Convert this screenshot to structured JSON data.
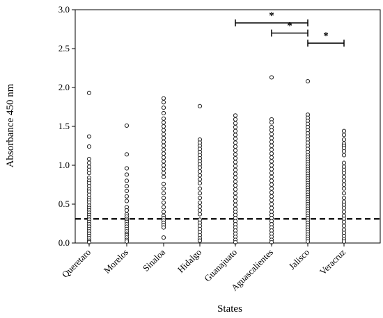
{
  "chart_data": {
    "type": "scatter",
    "title": "",
    "xlabel": "States",
    "ylabel": "Absorbance 450 nm",
    "ylim": [
      0,
      3.0
    ],
    "yticks": [
      "0.0",
      "0.5",
      "1.0",
      "1.5",
      "2.0",
      "2.5",
      "3.0"
    ],
    "categories": [
      "Queretaro",
      "Morelos",
      "Sinaloa",
      "Hidalgo",
      "Guanajuato",
      "Aguascalientes",
      "Jalisco",
      "Veracruz"
    ],
    "grid": false,
    "cutoff_line": 0.31,
    "series": [
      {
        "category": "Queretaro",
        "values": [
          1.93,
          1.37,
          1.24,
          1.08,
          1.03,
          0.98,
          0.94,
          0.9,
          0.84,
          0.8,
          0.77,
          0.73,
          0.69,
          0.66,
          0.62,
          0.58,
          0.55,
          0.52,
          0.48,
          0.45,
          0.42,
          0.39,
          0.36,
          0.33,
          0.3,
          0.27,
          0.24,
          0.21,
          0.18,
          0.15,
          0.12,
          0.09,
          0.06,
          0.03,
          0.01
        ]
      },
      {
        "category": "Morelos",
        "values": [
          1.51,
          1.14,
          0.96,
          0.88,
          0.8,
          0.73,
          0.67,
          0.6,
          0.54,
          0.46,
          0.42,
          0.37,
          0.34,
          0.31,
          0.29,
          0.27,
          0.24,
          0.21,
          0.18,
          0.15,
          0.12,
          0.1,
          0.07,
          0.04,
          0.02
        ]
      },
      {
        "category": "Sinaloa",
        "values": [
          1.86,
          1.81,
          1.74,
          1.67,
          1.6,
          1.55,
          1.5,
          1.45,
          1.4,
          1.35,
          1.3,
          1.25,
          1.2,
          1.15,
          1.1,
          1.05,
          1.0,
          0.95,
          0.9,
          0.85,
          0.76,
          0.7,
          0.64,
          0.58,
          0.52,
          0.46,
          0.4,
          0.35,
          0.32,
          0.29,
          0.26,
          0.23,
          0.2,
          0.07
        ]
      },
      {
        "category": "Hidalgo",
        "values": [
          1.76,
          1.33,
          1.29,
          1.25,
          1.21,
          1.17,
          1.13,
          1.09,
          1.05,
          1.01,
          0.97,
          0.92,
          0.87,
          0.82,
          0.77,
          0.7,
          0.64,
          0.58,
          0.52,
          0.47,
          0.42,
          0.37,
          0.3,
          0.26,
          0.22,
          0.18,
          0.14,
          0.1,
          0.06,
          0.03
        ]
      },
      {
        "category": "Guanajuato",
        "values": [
          1.64,
          1.59,
          1.54,
          1.49,
          1.44,
          1.39,
          1.34,
          1.29,
          1.24,
          1.19,
          1.14,
          1.09,
          1.04,
          0.99,
          0.94,
          0.89,
          0.84,
          0.79,
          0.74,
          0.69,
          0.64,
          0.59,
          0.54,
          0.49,
          0.44,
          0.4,
          0.36,
          0.32,
          0.28,
          0.24,
          0.2,
          0.16,
          0.12,
          0.08,
          0.04,
          0.01
        ]
      },
      {
        "category": "Aguascalientes",
        "values": [
          2.13,
          1.59,
          1.55,
          1.49,
          1.45,
          1.4,
          1.35,
          1.3,
          1.25,
          1.2,
          1.15,
          1.1,
          1.05,
          1.0,
          0.95,
          0.9,
          0.85,
          0.8,
          0.75,
          0.7,
          0.65,
          0.6,
          0.55,
          0.5,
          0.45,
          0.4,
          0.36,
          0.32,
          0.28,
          0.24,
          0.2,
          0.16,
          0.12,
          0.08,
          0.04,
          0.01
        ]
      },
      {
        "category": "Jalisco",
        "values": [
          2.08,
          1.65,
          1.61,
          1.57,
          1.53,
          1.49,
          1.45,
          1.41,
          1.37,
          1.33,
          1.29,
          1.25,
          1.21,
          1.17,
          1.13,
          1.1,
          1.07,
          1.04,
          1.01,
          0.98,
          0.95,
          0.92,
          0.89,
          0.86,
          0.83,
          0.8,
          0.77,
          0.74,
          0.71,
          0.68,
          0.65,
          0.62,
          0.59,
          0.56,
          0.53,
          0.5,
          0.47,
          0.44,
          0.41,
          0.38,
          0.35,
          0.32,
          0.29,
          0.26,
          0.23,
          0.2,
          0.17,
          0.14,
          0.11,
          0.08,
          0.05,
          0.02
        ]
      },
      {
        "category": "Veracruz",
        "values": [
          1.44,
          1.39,
          1.33,
          1.28,
          1.25,
          1.22,
          1.18,
          1.13,
          1.03,
          0.98,
          0.94,
          0.9,
          0.85,
          0.8,
          0.75,
          0.7,
          0.64,
          0.58,
          0.53,
          0.49,
          0.45,
          0.4,
          0.35,
          0.31,
          0.27,
          0.22,
          0.17,
          0.13,
          0.09,
          0.05,
          0.02
        ]
      }
    ],
    "significance": [
      {
        "from": "Guanajuato",
        "to": "Jalisco",
        "y": 2.83,
        "label": "*"
      },
      {
        "from": "Aguascalientes",
        "to": "Jalisco",
        "y": 2.7,
        "label": "*"
      },
      {
        "from": "Jalisco",
        "to": "Veracruz",
        "y": 2.57,
        "label": "*"
      }
    ]
  }
}
